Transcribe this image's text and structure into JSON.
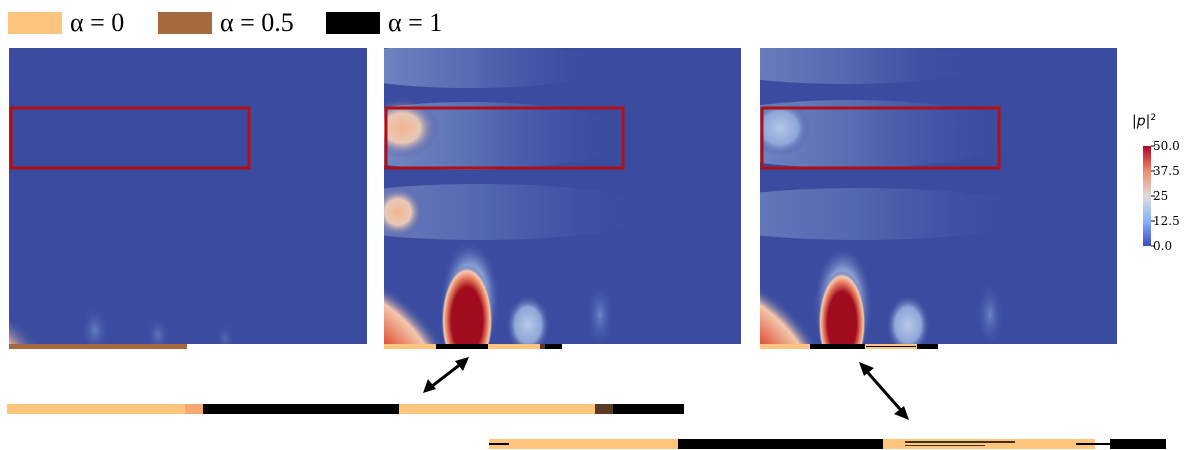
{
  "colors": {
    "alpha_0": "#ffc57e",
    "alpha_05": "#a7693f",
    "alpha_1": "#000000",
    "background_field": "#3b4ca0",
    "hot": "#a00b1e",
    "box_outline": "#b30f12"
  },
  "legend": [
    {
      "label": "α = 0",
      "color": "#ffc57e"
    },
    {
      "label": "α = 0.5",
      "color": "#a7693f"
    },
    {
      "label": "α = 1",
      "color": "#000000"
    }
  ],
  "colorbar": {
    "title_prefix": "|",
    "title_var": "p",
    "title_suffix": "|",
    "title_exp": "2",
    "ticks": [
      "50.0",
      "37.5",
      "25",
      "12.5",
      "0.0"
    ]
  },
  "panels": [
    {
      "name": "field-panel-alpha-half"
    },
    {
      "name": "field-panel-binary"
    },
    {
      "name": "field-panel-refined"
    }
  ],
  "icons": [
    "double-arrow-icon",
    "double-arrow-icon"
  ]
}
